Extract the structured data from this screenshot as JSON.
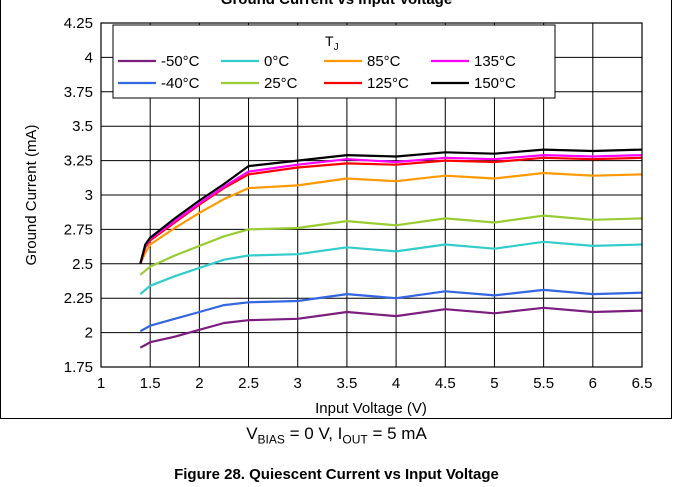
{
  "chart_data": {
    "type": "line",
    "title": "Ground Current vs Input Voltage",
    "xlabel": "Input Voltage (V)",
    "ylabel": "Ground Current (mA)",
    "xlim": [
      1,
      6.5
    ],
    "ylim": [
      1.75,
      4.25
    ],
    "xticks": [
      "1",
      "1.5",
      "2",
      "2.5",
      "3",
      "3.5",
      "4",
      "4.5",
      "5",
      "5.5",
      "6",
      "6.5"
    ],
    "yticks": [
      "1.75",
      "2",
      "2.25",
      "2.5",
      "2.75",
      "3",
      "3.25",
      "3.5",
      "3.75",
      "4",
      "4.25"
    ],
    "grid": true,
    "legend": {
      "title": "TJ",
      "position": "top"
    },
    "x": [
      1.4,
      1.45,
      1.5,
      1.75,
      2,
      2.25,
      2.5,
      3,
      3.5,
      4,
      4.5,
      5,
      5.5,
      6,
      6.5
    ],
    "series": [
      {
        "name": "-50°C",
        "color": "#7b1d7e",
        "values": [
          1.89,
          1.91,
          1.93,
          1.97,
          2.02,
          2.07,
          2.09,
          2.1,
          2.15,
          2.12,
          2.17,
          2.14,
          2.18,
          2.15,
          2.16
        ]
      },
      {
        "name": "-40°C",
        "color": "#3366e0",
        "values": [
          2.01,
          2.03,
          2.05,
          2.1,
          2.15,
          2.2,
          2.22,
          2.23,
          2.28,
          2.25,
          2.3,
          2.27,
          2.31,
          2.28,
          2.29
        ]
      },
      {
        "name": "0°C",
        "color": "#33cccc",
        "values": [
          2.28,
          2.31,
          2.34,
          2.41,
          2.47,
          2.53,
          2.56,
          2.57,
          2.62,
          2.59,
          2.64,
          2.61,
          2.66,
          2.63,
          2.64
        ]
      },
      {
        "name": "25°C",
        "color": "#99cc33",
        "values": [
          2.42,
          2.45,
          2.48,
          2.56,
          2.63,
          2.7,
          2.75,
          2.76,
          2.81,
          2.78,
          2.83,
          2.8,
          2.85,
          2.82,
          2.83
        ]
      },
      {
        "name": "85°C",
        "color": "#ff9900",
        "values": [
          2.5,
          2.58,
          2.64,
          2.76,
          2.87,
          2.97,
          3.05,
          3.07,
          3.12,
          3.1,
          3.14,
          3.12,
          3.16,
          3.14,
          3.15
        ]
      },
      {
        "name": "125°C",
        "color": "#ff0000",
        "values": [
          2.5,
          2.62,
          2.67,
          2.8,
          2.93,
          3.05,
          3.15,
          3.2,
          3.23,
          3.22,
          3.25,
          3.24,
          3.27,
          3.26,
          3.27
        ]
      },
      {
        "name": "135°C",
        "color": "#ff00ff",
        "values": [
          2.5,
          2.63,
          2.68,
          2.81,
          2.94,
          3.06,
          3.17,
          3.22,
          3.26,
          3.24,
          3.27,
          3.26,
          3.29,
          3.28,
          3.29
        ]
      },
      {
        "name": "150°C",
        "color": "#000000",
        "values": [
          2.5,
          2.64,
          2.69,
          2.83,
          2.96,
          3.08,
          3.21,
          3.25,
          3.29,
          3.28,
          3.31,
          3.3,
          3.33,
          3.32,
          3.33
        ]
      }
    ]
  },
  "conditions": {
    "v": "V",
    "v_sub": "BIAS",
    "v_rest": " = 0 V, ",
    "i": "I",
    "i_sub": "OUT",
    "i_rest": " = 5 mA"
  },
  "figure_caption": "Figure 28. Quiescent Current vs Input Voltage"
}
